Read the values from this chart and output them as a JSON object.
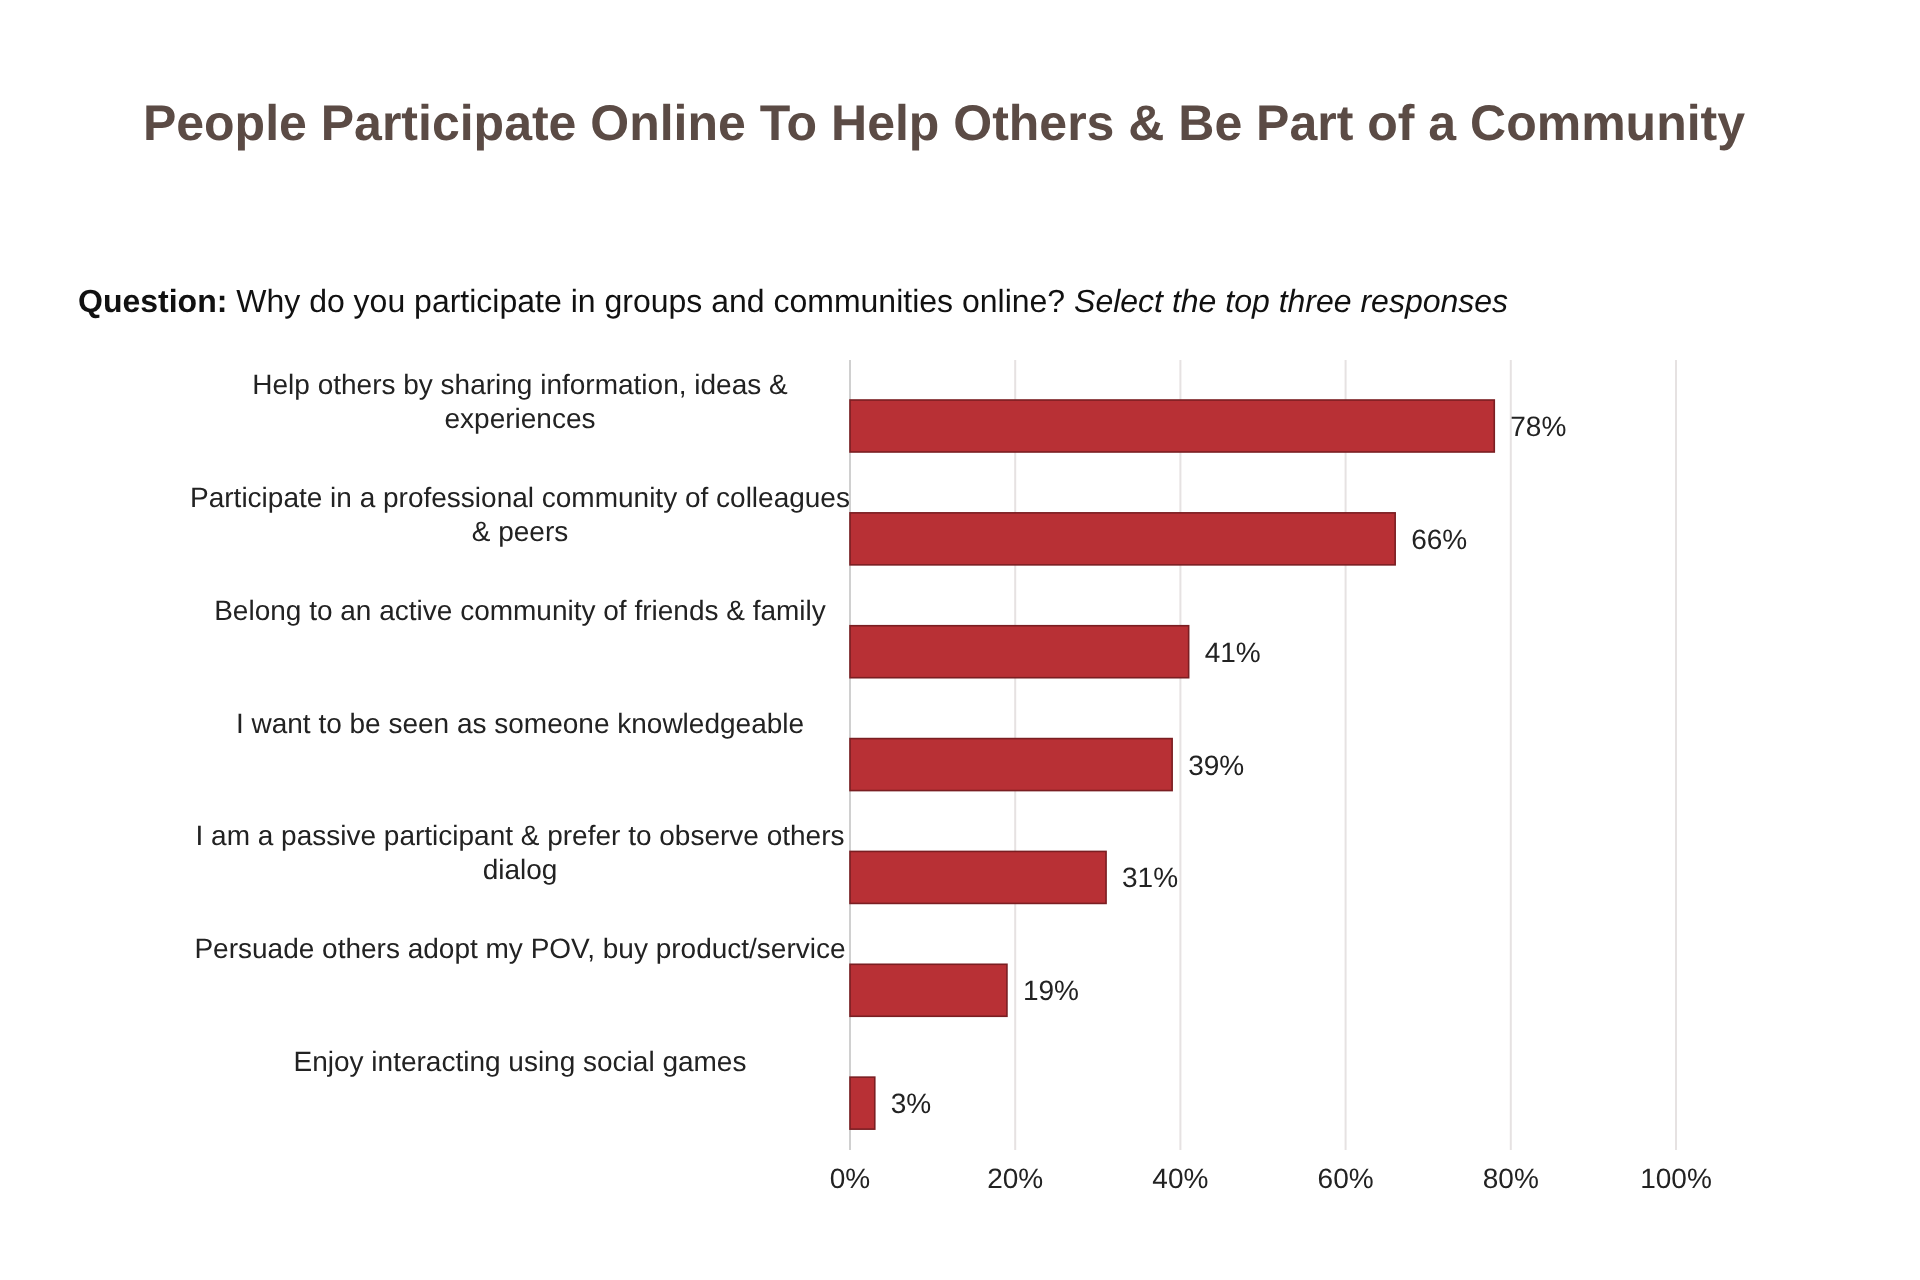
{
  "chart_data": {
    "type": "bar",
    "orientation": "horizontal",
    "title": "People Participate Online To Help Others & Be Part of a Community",
    "subtitle": "Question: Why do you participate in groups and communities online? Select the top three responses",
    "categories": [
      "Help others by sharing information, ideas & experiences",
      "Participate in a professional community of colleagues & peers",
      "Belong to an active community of friends & family",
      "I want to be seen as someone knowledgeable",
      "I am a passive participant & prefer to observe others dialog",
      "Persuade others adopt my POV, buy  product/service",
      "Enjoy interacting  using social games"
    ],
    "values": [
      78,
      66,
      41,
      39,
      31,
      19,
      3
    ],
    "color": "#b83035",
    "value_labels": [
      "78%",
      "66%",
      "41%",
      "39%",
      "31%",
      "19%",
      "3%"
    ],
    "xlim": [
      0,
      100
    ],
    "xticks": [
      {
        "value": 0,
        "label": "0%"
      },
      {
        "value": 20,
        "label": "20%"
      },
      {
        "value": 40,
        "label": "40%"
      },
      {
        "value": 60,
        "label": "60%"
      },
      {
        "value": 80,
        "label": "80%"
      },
      {
        "value": 100,
        "label": "100%"
      }
    ],
    "grid": "x"
  }
}
